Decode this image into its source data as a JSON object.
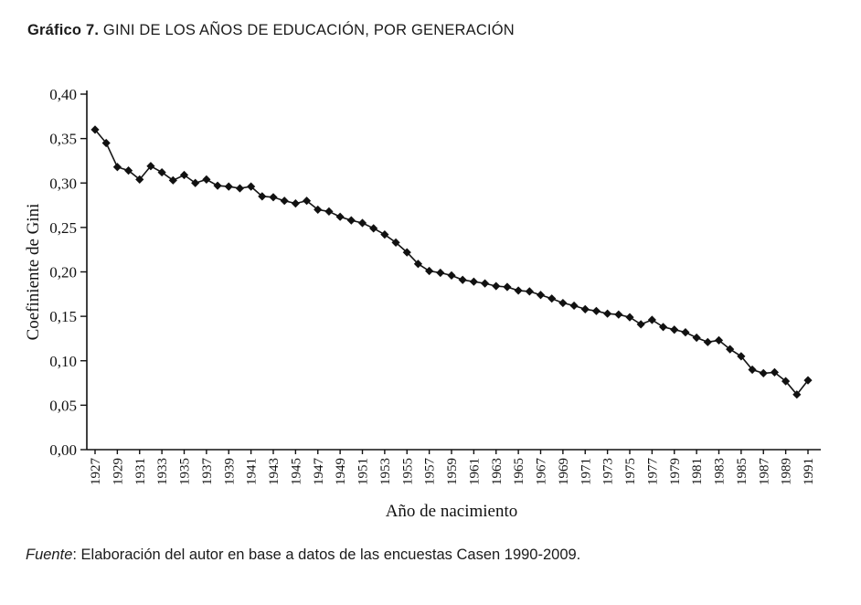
{
  "title": {
    "prefix": "Gráfico 7.",
    "text": " GINI DE LOS AÑOS DE EDUCACIÓN, POR GENERACIÓN"
  },
  "source": {
    "label": "Fuente",
    "text": ": Elaboración del autor en base a datos de las encuestas Casen 1990-2009."
  },
  "chart_data": {
    "type": "line",
    "title": "GINI DE LOS AÑOS DE EDUCACIÓN, POR GENERACIÓN",
    "xlabel": "Año de nacimiento",
    "ylabel": "Coefiniente de Gini",
    "marker": "diamond",
    "line_color": "#151515",
    "ylim": [
      0,
      0.4
    ],
    "grid": false,
    "legend": "none",
    "y_ticks": [
      {
        "v": 0.0,
        "label": "0,00"
      },
      {
        "v": 0.05,
        "label": "0,05"
      },
      {
        "v": 0.1,
        "label": "0,10"
      },
      {
        "v": 0.15,
        "label": "0,15"
      },
      {
        "v": 0.2,
        "label": "0,20"
      },
      {
        "v": 0.25,
        "label": "0,25"
      },
      {
        "v": 0.3,
        "label": "0,30"
      },
      {
        "v": 0.35,
        "label": "0,35"
      },
      {
        "v": 0.4,
        "label": "0,40"
      }
    ],
    "x_tick_labels": [
      1927,
      1929,
      1931,
      1933,
      1935,
      1937,
      1939,
      1941,
      1943,
      1945,
      1947,
      1949,
      1951,
      1953,
      1955,
      1957,
      1959,
      1961,
      1963,
      1965,
      1967,
      1969,
      1971,
      1973,
      1975,
      1977,
      1979,
      1981,
      1983,
      1985,
      1987,
      1989,
      1991
    ],
    "x": [
      1927,
      1928,
      1929,
      1930,
      1931,
      1932,
      1933,
      1934,
      1935,
      1936,
      1937,
      1938,
      1939,
      1940,
      1941,
      1942,
      1943,
      1944,
      1945,
      1946,
      1947,
      1948,
      1949,
      1950,
      1951,
      1952,
      1953,
      1954,
      1955,
      1956,
      1957,
      1958,
      1959,
      1960,
      1961,
      1962,
      1963,
      1964,
      1965,
      1966,
      1967,
      1968,
      1969,
      1970,
      1971,
      1972,
      1973,
      1974,
      1975,
      1976,
      1977,
      1978,
      1979,
      1980,
      1981,
      1982,
      1983,
      1984,
      1985,
      1986,
      1987,
      1988,
      1989,
      1990,
      1991
    ],
    "values": [
      0.36,
      0.345,
      0.318,
      0.314,
      0.304,
      0.319,
      0.312,
      0.303,
      0.309,
      0.3,
      0.304,
      0.297,
      0.296,
      0.294,
      0.296,
      0.285,
      0.284,
      0.28,
      0.277,
      0.28,
      0.27,
      0.268,
      0.262,
      0.258,
      0.255,
      0.249,
      0.242,
      0.233,
      0.222,
      0.209,
      0.201,
      0.199,
      0.196,
      0.191,
      0.189,
      0.187,
      0.184,
      0.183,
      0.179,
      0.178,
      0.174,
      0.17,
      0.165,
      0.162,
      0.158,
      0.156,
      0.153,
      0.152,
      0.149,
      0.141,
      0.146,
      0.138,
      0.135,
      0.132,
      0.126,
      0.121,
      0.123,
      0.113,
      0.105,
      0.09,
      0.086,
      0.087,
      0.077,
      0.062,
      0.078
    ]
  }
}
